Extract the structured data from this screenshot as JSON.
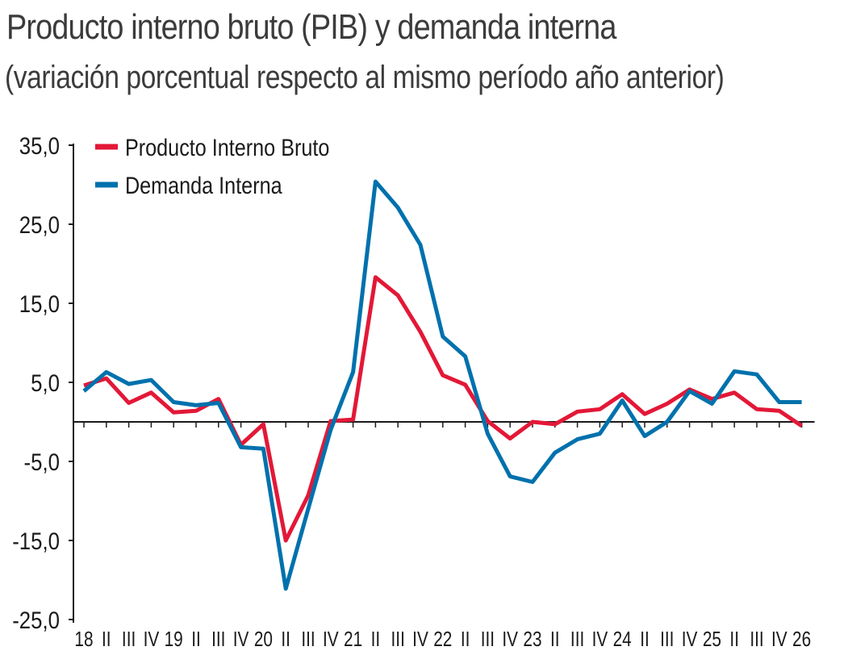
{
  "header": {
    "title": "Producto interno bruto (PIB) y demanda interna",
    "subtitle": "(variación porcentual respecto al mismo período año anterior)"
  },
  "chart_data": {
    "type": "line",
    "title": "Producto interno bruto (PIB) y demanda interna",
    "subtitle": "(variación porcentual respecto al mismo período año anterior)",
    "xlabel": "",
    "ylabel": "",
    "ylim": [
      -25,
      35
    ],
    "yticks": [
      "35,0",
      "25,0",
      "15,0",
      "5,0",
      "-5,0",
      "-15,0",
      "-25,0"
    ],
    "ytick_values": [
      35,
      25,
      15,
      5,
      -5,
      -15,
      -25
    ],
    "grid": false,
    "legend_position": "top-left",
    "x": [
      "18",
      "II",
      "III",
      "IV",
      "19",
      "II",
      "III",
      "IV",
      "20",
      "II",
      "III",
      "IV",
      "21",
      "II",
      "III",
      "IV",
      "22",
      "II",
      "III",
      "IV",
      "23",
      "II",
      "III",
      "IV",
      "24",
      "II",
      "III",
      "IV",
      "25",
      "II",
      "III",
      "IV",
      "26"
    ],
    "series": [
      {
        "name": "Producto Interno Bruto",
        "color": "#e31837",
        "values": [
          4.6,
          5.5,
          2.4,
          3.7,
          1.2,
          1.4,
          2.9,
          -2.9,
          -0.3,
          -15.0,
          -9.3,
          0.1,
          0.3,
          18.3,
          16.0,
          11.4,
          5.9,
          4.7,
          0.1,
          -2.1,
          0.0,
          -0.3,
          1.3,
          1.6,
          3.5,
          1.0,
          2.3,
          4.1,
          2.9,
          3.7,
          1.6,
          1.4,
          -0.5
        ]
      },
      {
        "name": "Demanda Interna",
        "color": "#0071ad",
        "values": [
          3.9,
          6.3,
          4.8,
          5.3,
          2.5,
          2.1,
          2.4,
          -3.2,
          -3.4,
          -21.1,
          -11.0,
          -1.0,
          6.3,
          30.4,
          27.1,
          22.4,
          10.8,
          8.3,
          -1.5,
          -6.9,
          -7.6,
          -3.9,
          -2.2,
          -1.5,
          2.7,
          -1.8,
          0.0,
          3.9,
          2.3,
          6.4,
          6.0,
          2.5,
          2.5
        ]
      }
    ]
  }
}
